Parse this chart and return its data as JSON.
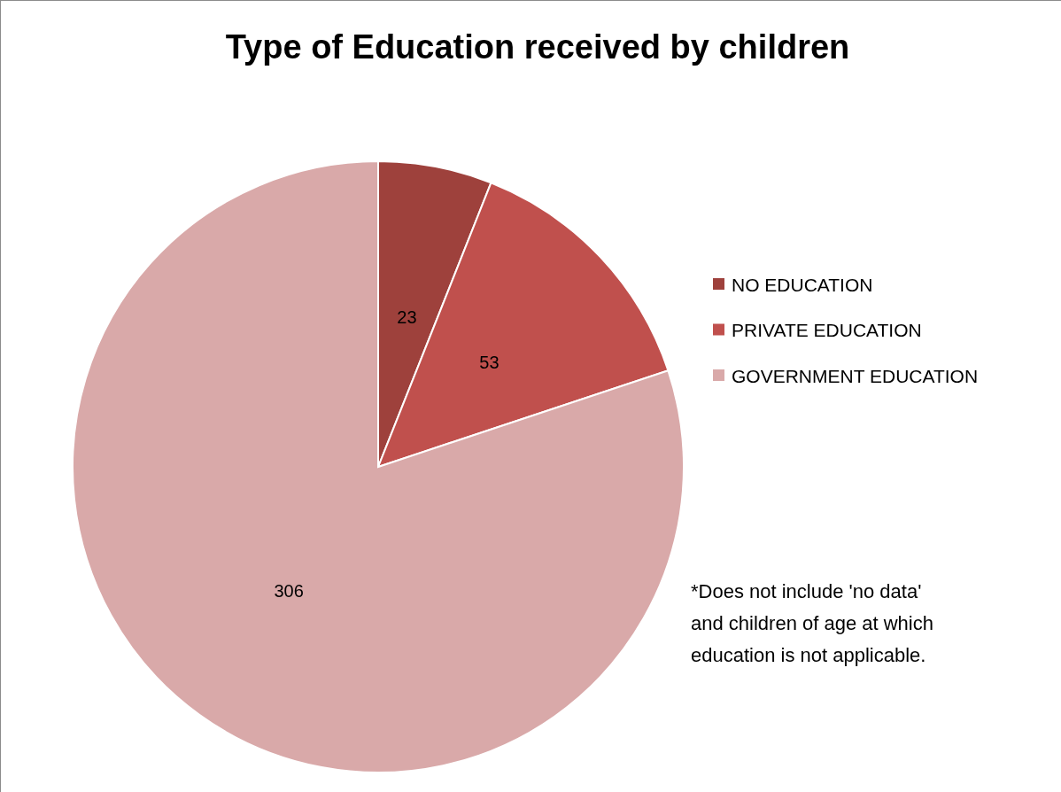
{
  "chart_data": {
    "type": "pie",
    "title": "Type of Education received by children",
    "categories": [
      "NO EDUCATION",
      "PRIVATE EDUCATION",
      "GOVERNMENT EDUCATION"
    ],
    "values": [
      23,
      53,
      306
    ],
    "colors": [
      "#9e413c",
      "#c0504d",
      "#d9a9a9"
    ],
    "data_labels": true,
    "legend": "right",
    "annotations": [
      "*Does not include 'no data' and children of age at which education is not applicable."
    ]
  }
}
